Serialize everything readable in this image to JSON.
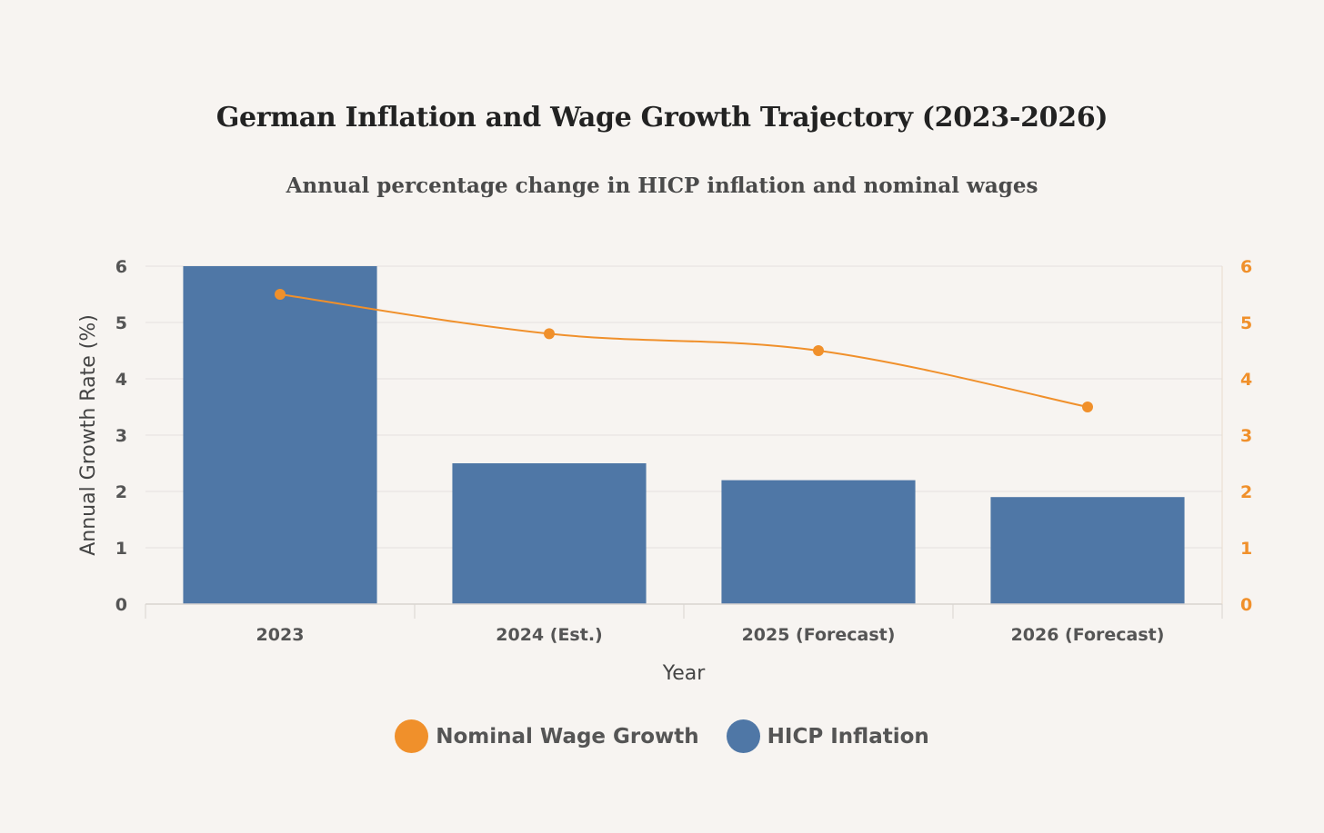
{
  "colors": {
    "wage": "#f0902b",
    "inflation": "#4f77a6",
    "grid": "#e4e1de",
    "axis_text": "#555555"
  },
  "chart_data": {
    "type": "bar",
    "title": "German Inflation and Wage Growth Trajectory (2023-2026)",
    "subtitle": "Annual percentage change in HICP inflation and nominal wages",
    "categories": [
      "2023",
      "2024 (Est.)",
      "2025 (Forecast)",
      "2026 (Forecast)"
    ],
    "series": [
      {
        "name": "HICP Inflation",
        "type": "bar",
        "axis": "left",
        "values": [
          6.0,
          2.5,
          2.2,
          1.9
        ]
      },
      {
        "name": "Nominal Wage Growth",
        "type": "line",
        "axis": "right",
        "values": [
          5.5,
          4.8,
          4.5,
          3.5
        ]
      }
    ],
    "xlabel": "Year",
    "ylabel": "Annual Growth Rate (%)",
    "ylim": [
      0,
      6
    ],
    "yticks": [
      "0",
      "1",
      "2",
      "3",
      "4",
      "5",
      "6"
    ],
    "y2lim": [
      0,
      6
    ],
    "y2ticks": [
      "0",
      "1",
      "2",
      "3",
      "4",
      "5",
      "6"
    ],
    "grid": true,
    "legend_position": "bottom"
  },
  "legend": [
    {
      "label": "Nominal Wage Growth",
      "color": "#f0902b"
    },
    {
      "label": "HICP Inflation",
      "color": "#4f77a6"
    }
  ]
}
